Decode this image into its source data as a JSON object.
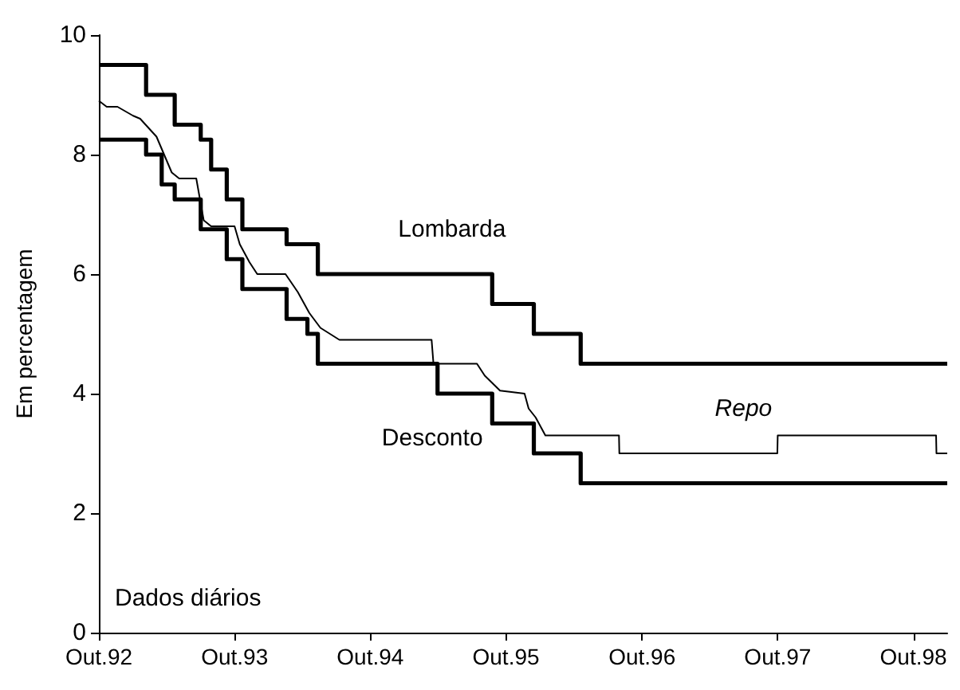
{
  "chart_data": {
    "type": "step",
    "ylabel": "Em percentagem",
    "annotations": [
      "Dados diários"
    ],
    "xlim": [
      "1992-10-01",
      "1998-12-31"
    ],
    "xticks": [
      {
        "value": "1992-10-01",
        "label": "Out.92"
      },
      {
        "value": "1993-10-01",
        "label": "Out.93"
      },
      {
        "value": "1994-10-01",
        "label": "Out.94"
      },
      {
        "value": "1995-10-01",
        "label": "Out.95"
      },
      {
        "value": "1996-10-01",
        "label": "Out.96"
      },
      {
        "value": "1997-10-01",
        "label": "Out.97"
      },
      {
        "value": "1998-10-01",
        "label": "Out.98"
      }
    ],
    "ylim": [
      0,
      10
    ],
    "yticks": [
      0,
      2,
      4,
      6,
      8,
      10
    ],
    "grid": false,
    "legend": false,
    "series": [
      {
        "name": "Lombarda",
        "color": "#000000",
        "x": [
          "1992-10-01",
          "1993-02-05",
          "1993-04-23",
          "1993-07-02",
          "1993-07-30",
          "1993-09-10",
          "1993-10-22",
          "1994-02-18",
          "1994-05-13",
          "1995-08-25",
          "1995-12-15",
          "1996-04-19",
          "1998-12-31"
        ],
        "values": [
          9.5,
          9.0,
          8.5,
          8.25,
          7.75,
          7.25,
          6.75,
          6.5,
          6.0,
          5.5,
          5.0,
          4.5,
          4.5
        ]
      },
      {
        "name": "Desconto",
        "color": "#000000",
        "x": [
          "1992-10-01",
          "1993-02-05",
          "1993-03-19",
          "1993-04-23",
          "1993-07-02",
          "1993-09-10",
          "1993-10-22",
          "1994-02-18",
          "1994-04-15",
          "1994-05-13",
          "1995-03-31",
          "1995-08-25",
          "1995-12-15",
          "1996-04-19",
          "1998-12-31"
        ],
        "values": [
          8.25,
          8.0,
          7.5,
          7.25,
          6.75,
          6.25,
          5.75,
          5.25,
          5.0,
          4.5,
          4.0,
          3.5,
          3.0,
          2.5,
          2.5
        ]
      },
      {
        "name": "Repo",
        "type": "line",
        "color": "#000000",
        "x": [
          "1992-10-01",
          "1992-10-22",
          "1992-11-20",
          "1993-01-01",
          "1993-01-20",
          "1993-03-05",
          "1993-04-15",
          "1993-05-05",
          "1993-06-20",
          "1993-07-10",
          "1993-07-30",
          "1993-10-01",
          "1993-10-15",
          "1993-11-10",
          "1993-12-01",
          "1994-02-15",
          "1994-03-20",
          "1994-04-20",
          "1994-05-20",
          "1994-07-10",
          "1995-03-15",
          "1995-03-20",
          "1995-07-15",
          "1995-08-05",
          "1995-09-15",
          "1995-11-20",
          "1995-12-01",
          "1995-12-20",
          "1996-01-15",
          "1996-07-31",
          "1996-08-01",
          "1997-09-30",
          "1997-10-01",
          "1998-12-01",
          "1998-12-02",
          "1998-12-31"
        ],
        "values": [
          8.9,
          8.8,
          8.8,
          8.65,
          8.6,
          8.3,
          7.7,
          7.6,
          7.6,
          6.9,
          6.8,
          6.8,
          6.5,
          6.2,
          6.0,
          6.0,
          5.7,
          5.35,
          5.1,
          4.9,
          4.9,
          4.5,
          4.5,
          4.3,
          4.05,
          4.0,
          3.75,
          3.6,
          3.3,
          3.3,
          3.0,
          3.0,
          3.3,
          3.3,
          3.0,
          3.0
        ]
      }
    ]
  }
}
